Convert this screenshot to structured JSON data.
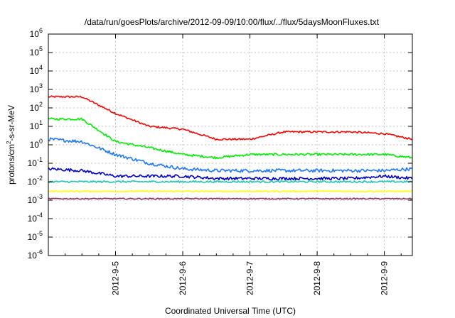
{
  "chart_data": {
    "type": "line",
    "title": "/data/run/goesPlots/archive/2012-09-09/10:00/flux/../flux/5daysMoonFluxes.txt",
    "xlabel": "Coordinated Universal Time (UTC)",
    "ylabel": "protons/cm²-s-sr-MeV",
    "ylabel_parts": {
      "base": "protons/cm",
      "sup": "2",
      "rest": "-s-sr-MeV"
    },
    "y_scale": "log",
    "ylim": [
      1e-06,
      1000000.0
    ],
    "y_ticks": [
      {
        "value": 1e-06,
        "base": "10",
        "exp": "-6"
      },
      {
        "value": 1e-05,
        "base": "10",
        "exp": "-5"
      },
      {
        "value": 0.0001,
        "base": "10",
        "exp": "-4"
      },
      {
        "value": 0.001,
        "base": "10",
        "exp": "-3"
      },
      {
        "value": 0.01,
        "base": "10",
        "exp": "-2"
      },
      {
        "value": 0.1,
        "base": "10",
        "exp": "-1"
      },
      {
        "value": 1.0,
        "base": "10",
        "exp": "0"
      },
      {
        "value": 10.0,
        "base": "10",
        "exp": "1"
      },
      {
        "value": 100.0,
        "base": "10",
        "exp": "2"
      },
      {
        "value": 1000.0,
        "base": "10",
        "exp": "3"
      },
      {
        "value": 10000.0,
        "base": "10",
        "exp": "4"
      },
      {
        "value": 100000.0,
        "base": "10",
        "exp": "5"
      },
      {
        "value": 1000000.0,
        "base": "10",
        "exp": "6"
      }
    ],
    "xlim": [
      "2012-09-04 00:00",
      "2012-09-09 10:00"
    ],
    "x_ticks": [
      "2012-9-5",
      "2012-9-6",
      "2012-9-7",
      "2012-9-8",
      "2012-9-9"
    ],
    "grid": true,
    "x": [
      "2012-09-04 00:00",
      "2012-09-04 12:00",
      "2012-09-05 00:00",
      "2012-09-05 12:00",
      "2012-09-06 00:00",
      "2012-09-06 12:00",
      "2012-09-07 00:00",
      "2012-09-07 12:00",
      "2012-09-08 00:00",
      "2012-09-08 12:00",
      "2012-09-09 00:00",
      "2012-09-09 10:00"
    ],
    "series": [
      {
        "color": "#ff0000",
        "values": [
          400,
          400,
          50,
          10,
          7,
          2,
          2,
          5,
          5,
          5,
          4,
          2
        ]
      },
      {
        "color": "#00ee00",
        "values": [
          25,
          25,
          1.5,
          0.7,
          0.3,
          0.2,
          0.3,
          0.3,
          0.3,
          0.3,
          0.3,
          0.2
        ]
      },
      {
        "color": "#1e78ff",
        "values": [
          2,
          1.5,
          0.3,
          0.1,
          0.05,
          0.04,
          0.04,
          0.04,
          0.04,
          0.04,
          0.04,
          0.05
        ]
      },
      {
        "color": "#0000cc",
        "values": [
          0.05,
          0.04,
          0.02,
          0.02,
          0.02,
          0.015,
          0.015,
          0.015,
          0.015,
          0.015,
          0.02,
          0.015
        ]
      },
      {
        "color": "#20c8b4",
        "values": [
          0.01,
          0.01,
          0.01,
          0.01,
          0.01,
          0.01,
          0.01,
          0.01,
          0.01,
          0.01,
          0.01,
          0.01
        ]
      },
      {
        "color": "#ffff00",
        "values": [
          0.003,
          0.003,
          0.003,
          0.003,
          0.003,
          0.003,
          0.003,
          0.003,
          0.003,
          0.003,
          0.003,
          0.003
        ]
      },
      {
        "color": "#943060",
        "values": [
          0.0012,
          0.0012,
          0.0012,
          0.0012,
          0.0012,
          0.0012,
          0.0012,
          0.0012,
          0.0012,
          0.0012,
          0.0012,
          0.0012
        ]
      }
    ]
  }
}
